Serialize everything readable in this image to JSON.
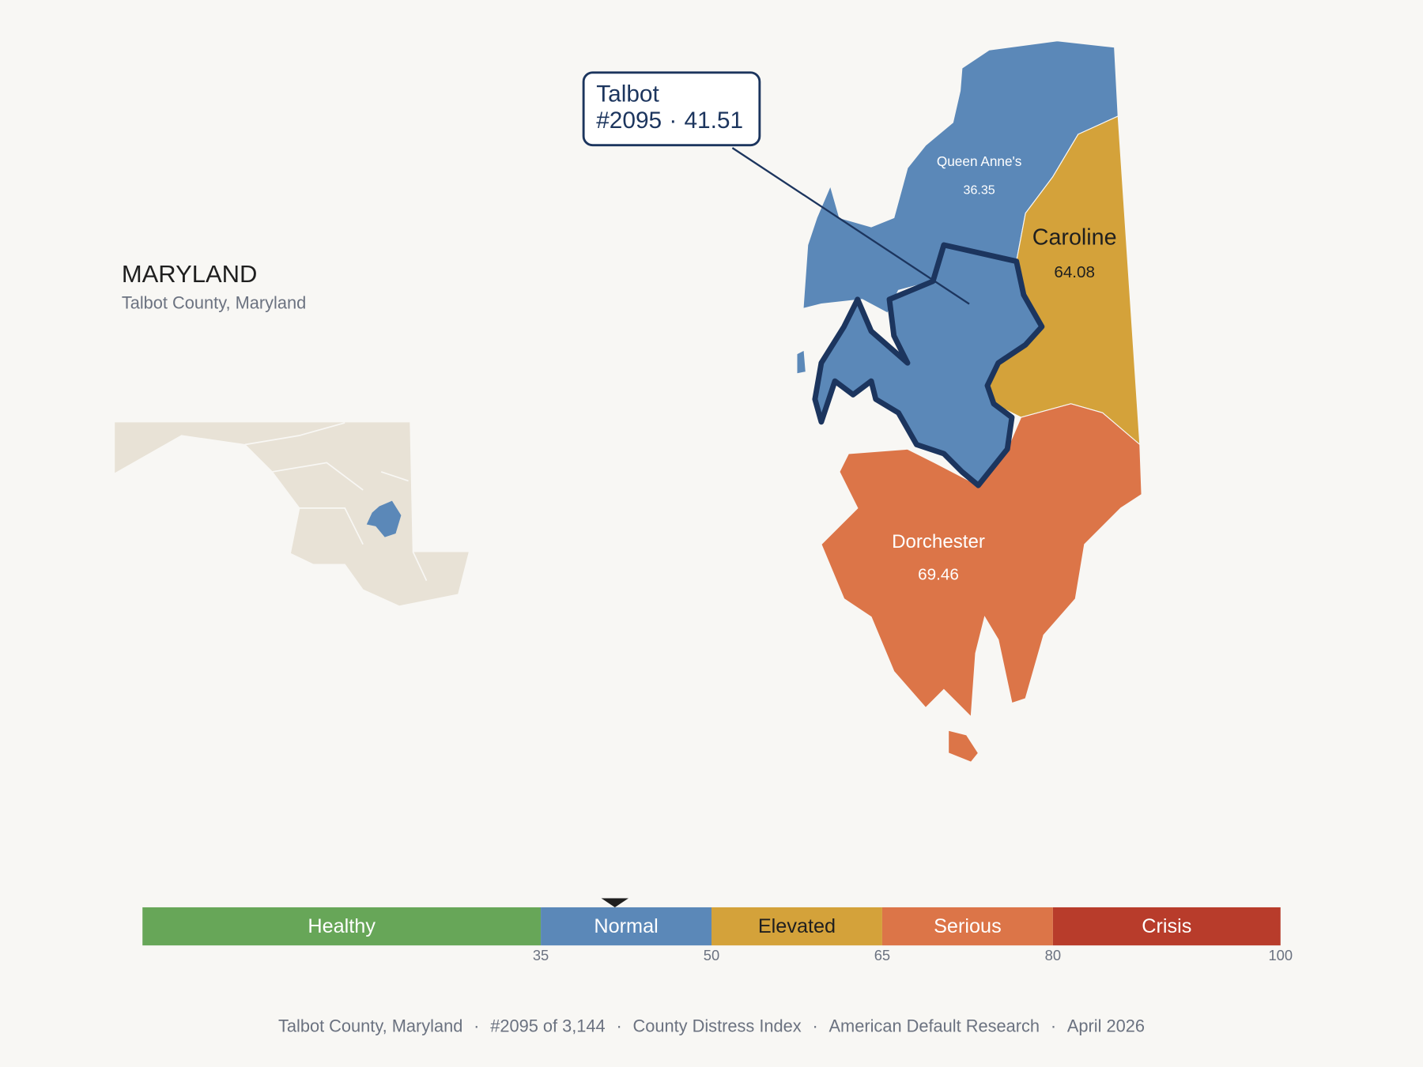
{
  "header": {
    "title": "MARYLAND",
    "subtitle": "Talbot County, Maryland"
  },
  "callout": {
    "name": "Talbot",
    "rank": "#2095",
    "separator": "·",
    "score": 41.51
  },
  "counties": [
    {
      "name": "Queen Anne's",
      "score": 36.35
    },
    {
      "name": "Caroline",
      "score": 64.08
    },
    {
      "name": "Dorchester",
      "score": 69.46
    }
  ],
  "scale": {
    "xlim": [
      0,
      100
    ],
    "ticks": [
      35,
      50,
      65,
      80,
      100
    ],
    "bands": [
      {
        "label": "Healthy",
        "color": "#67a658",
        "text_color": "#ffffff"
      },
      {
        "label": "Normal",
        "color": "#5b88b8",
        "text_color": "#ffffff"
      },
      {
        "label": "Elevated",
        "color": "#d4a23a",
        "text_color": "#1f1f1f"
      },
      {
        "label": "Serious",
        "color": "#dc7548",
        "text_color": "#ffffff"
      },
      {
        "label": "Crisis",
        "color": "#b83c2b",
        "text_color": "#ffffff"
      }
    ]
  },
  "footer": {
    "items": [
      "Talbot County, Maryland",
      "#2095 of 3,144",
      "County Distress Index",
      "American Default Research",
      "April 2026"
    ],
    "separator": "·"
  }
}
